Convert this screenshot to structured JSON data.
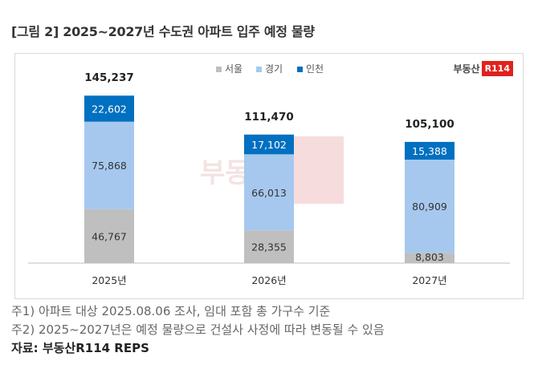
{
  "figure_title": "[그림 2] 2025~2027년 수도권 아파트 입주 예정 물량",
  "logo": {
    "text": "부동산",
    "badge": "R114"
  },
  "notes": [
    "주1) 아파트 대상 2025.08.06 조사, 임대 포함 총 가구수 기준",
    "주2) 2025~2027년은 예정 물량으로 건설사 사정에 따라 변동될 수 있음"
  ],
  "source": "자료: 부동산R114 REPS",
  "colors": {
    "서울": "#bfbfbf",
    "경기": "#a6c8ee",
    "인천": "#0070c0"
  },
  "chart_data": {
    "type": "bar",
    "stacked": true,
    "categories": [
      "2025년",
      "2026년",
      "2027년"
    ],
    "series": [
      {
        "name": "서울",
        "values": [
          46767,
          28355,
          8803
        ]
      },
      {
        "name": "경기",
        "values": [
          75868,
          66013,
          80909
        ]
      },
      {
        "name": "인천",
        "values": [
          22602,
          17102,
          15388
        ]
      }
    ],
    "totals": [
      145237,
      111470,
      105100
    ],
    "legend": "top-center",
    "grid": false,
    "ylim": [
      0,
      160000
    ]
  }
}
